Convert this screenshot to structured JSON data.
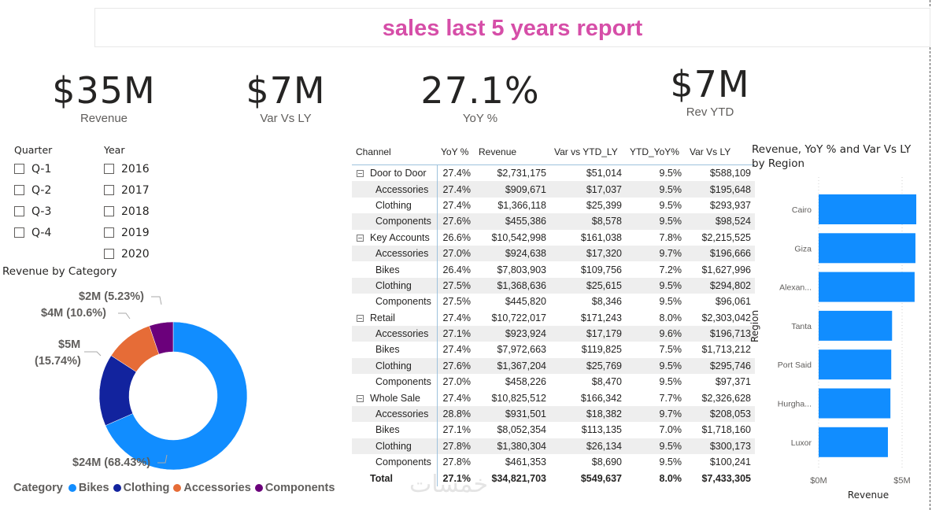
{
  "header": {
    "title": "sales last 5 years report"
  },
  "kpis": [
    {
      "value": "$35M",
      "label": "Revenue"
    },
    {
      "value": "$7M",
      "label": "Var Vs LY"
    },
    {
      "value": "27.1%",
      "label": "YoY %"
    },
    {
      "value": "$7M",
      "label": "Rev YTD"
    }
  ],
  "slicers": {
    "quarter": {
      "title": "Quarter",
      "items": [
        "Q-1",
        "Q-2",
        "Q-3",
        "Q-4"
      ]
    },
    "year": {
      "title": "Year",
      "items": [
        "2016",
        "2017",
        "2018",
        "2019",
        "2020"
      ]
    }
  },
  "donut": {
    "title": "Revenue by Category",
    "legend_title": "Category",
    "labels": {
      "bikes": "$24M (68.43%)",
      "clothing_line1": "$5M",
      "clothing_line2": "(15.74%)",
      "accessories": "$4M (10.6%)",
      "components": "$2M (5.23%)"
    }
  },
  "chart_data": [
    {
      "type": "pie",
      "title": "Revenue by Category",
      "legend_title": "Category",
      "legend_position": "bottom-left",
      "categories": [
        "Bikes",
        "Clothing",
        "Accessories",
        "Components"
      ],
      "values": [
        24,
        5,
        4,
        2
      ],
      "percents": [
        68.43,
        15.74,
        10.6,
        5.23
      ],
      "colors": [
        "#118dff",
        "#12239e",
        "#e66c37",
        "#6b007b"
      ],
      "value_unit": "$M",
      "donut": true
    },
    {
      "type": "bar",
      "orientation": "horizontal",
      "title": "Revenue, YoY % and Var Vs LY by Region",
      "xlabel": "Revenue",
      "ylabel": "Region",
      "categories": [
        "Cairo",
        "Giza",
        "Alexan...",
        "Tanta",
        "Port Said",
        "Hurgha...",
        "Luxor"
      ],
      "values": [
        5.85,
        5.8,
        5.75,
        4.4,
        4.35,
        4.3,
        4.15
      ],
      "value_unit": "$M",
      "xlim": [
        0,
        6
      ],
      "xticks": [
        "$0M",
        "$5M"
      ],
      "xtick_values": [
        0,
        5
      ],
      "color": "#118dff",
      "grid": true
    }
  ],
  "matrix": {
    "columns": [
      "Channel",
      "YoY %",
      "Revenue",
      "Var vs YTD_LY",
      "YTD_YoY%",
      "Var Vs LY"
    ],
    "rows": [
      {
        "type": "group",
        "cells": [
          "Door to Door",
          "27.4%",
          "$2,731,175",
          "$51,014",
          "9.5%",
          "$588,109"
        ]
      },
      {
        "type": "sub",
        "cells": [
          "Accessories",
          "27.4%",
          "$909,671",
          "$17,037",
          "9.5%",
          "$195,648"
        ]
      },
      {
        "type": "sub",
        "cells": [
          "Clothing",
          "27.4%",
          "$1,366,118",
          "$25,399",
          "9.5%",
          "$293,937"
        ]
      },
      {
        "type": "sub",
        "cells": [
          "Components",
          "27.6%",
          "$455,386",
          "$8,578",
          "9.5%",
          "$98,524"
        ]
      },
      {
        "type": "group",
        "cells": [
          "Key Accounts",
          "26.6%",
          "$10,542,998",
          "$161,038",
          "7.8%",
          "$2,215,525"
        ]
      },
      {
        "type": "sub",
        "cells": [
          "Accessories",
          "27.0%",
          "$924,638",
          "$17,320",
          "9.7%",
          "$196,666"
        ]
      },
      {
        "type": "sub",
        "cells": [
          "Bikes",
          "26.4%",
          "$7,803,903",
          "$109,756",
          "7.2%",
          "$1,627,996"
        ]
      },
      {
        "type": "sub",
        "cells": [
          "Clothing",
          "27.5%",
          "$1,368,636",
          "$25,615",
          "9.5%",
          "$294,802"
        ]
      },
      {
        "type": "sub",
        "cells": [
          "Components",
          "27.5%",
          "$445,820",
          "$8,346",
          "9.5%",
          "$96,061"
        ]
      },
      {
        "type": "group",
        "cells": [
          "Retail",
          "27.4%",
          "$10,722,017",
          "$171,243",
          "8.0%",
          "$2,303,042"
        ]
      },
      {
        "type": "sub",
        "cells": [
          "Accessories",
          "27.1%",
          "$923,924",
          "$17,179",
          "9.6%",
          "$196,713"
        ]
      },
      {
        "type": "sub",
        "cells": [
          "Bikes",
          "27.4%",
          "$7,972,663",
          "$119,825",
          "7.5%",
          "$1,713,212"
        ]
      },
      {
        "type": "sub",
        "cells": [
          "Clothing",
          "27.6%",
          "$1,367,204",
          "$25,769",
          "9.5%",
          "$295,746"
        ]
      },
      {
        "type": "sub",
        "cells": [
          "Components",
          "27.0%",
          "$458,226",
          "$8,470",
          "9.5%",
          "$97,371"
        ]
      },
      {
        "type": "group",
        "cells": [
          "Whole Sale",
          "27.4%",
          "$10,825,512",
          "$166,342",
          "7.7%",
          "$2,326,628"
        ]
      },
      {
        "type": "sub",
        "cells": [
          "Accessories",
          "28.8%",
          "$931,501",
          "$18,382",
          "9.7%",
          "$208,053"
        ]
      },
      {
        "type": "sub",
        "cells": [
          "Bikes",
          "27.1%",
          "$8,052,354",
          "$113,135",
          "7.0%",
          "$1,718,160"
        ]
      },
      {
        "type": "sub",
        "cells": [
          "Clothing",
          "27.8%",
          "$1,380,304",
          "$26,134",
          "9.5%",
          "$300,173"
        ]
      },
      {
        "type": "sub",
        "cells": [
          "Components",
          "27.8%",
          "$461,353",
          "$8,690",
          "9.5%",
          "$100,241"
        ]
      },
      {
        "type": "total",
        "cells": [
          "Total",
          "27.1%",
          "$34,821,703",
          "$549,637",
          "8.0%",
          "$7,433,305"
        ]
      }
    ]
  },
  "watermark": "خمسات"
}
